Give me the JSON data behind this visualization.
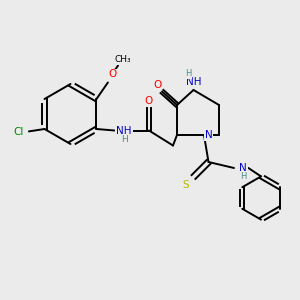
{
  "bg_color": "#ebebeb",
  "bond_color": "#000000",
  "atom_colors": {
    "O": "#ff0000",
    "N": "#0000cc",
    "NH": "#0000cc",
    "S": "#b8b800",
    "Cl": "#008800",
    "H": "#4a8a8a",
    "C": "#000000"
  },
  "lw": 1.4,
  "fs": 7.5
}
